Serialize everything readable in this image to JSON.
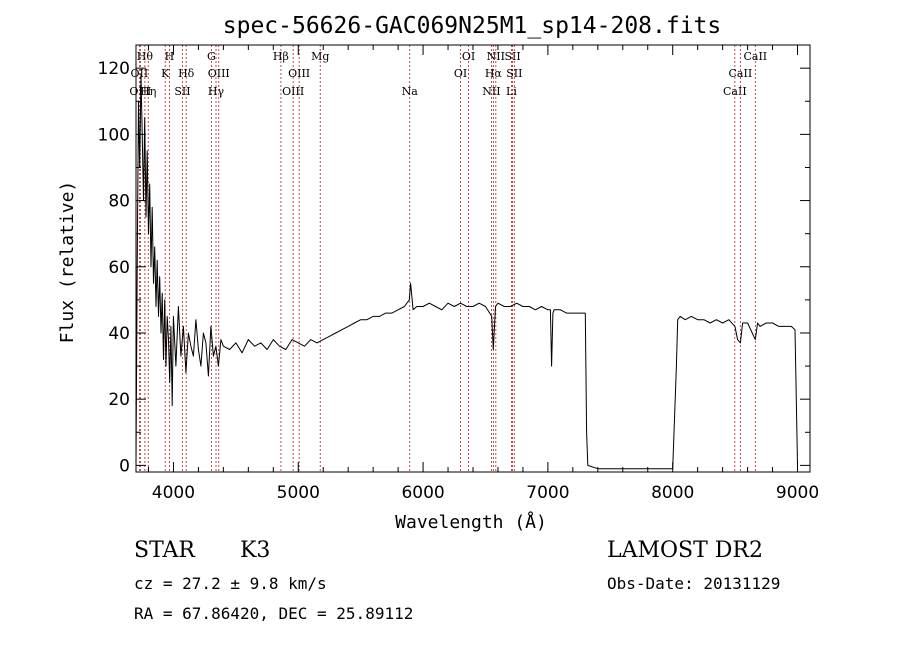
{
  "chart_data": {
    "type": "line",
    "title": "spec-56626-GAC069N25M1_sp14-208.fits",
    "xlabel": "Wavelength (Å)",
    "ylabel": "Flux (relative)",
    "xlim": [
      3700,
      9100
    ],
    "ylim": [
      -2,
      127
    ],
    "xticks": [
      4000,
      5000,
      6000,
      7000,
      8000,
      9000
    ],
    "yticks": [
      0,
      20,
      40,
      60,
      80,
      100,
      120
    ],
    "grid": false,
    "series": [
      {
        "x": [
          3700,
          3710,
          3720,
          3730,
          3740,
          3750,
          3760,
          3770,
          3780,
          3790,
          3800,
          3810,
          3820,
          3830,
          3840,
          3850,
          3860,
          3870,
          3880,
          3890,
          3900,
          3910,
          3920,
          3930,
          3940,
          3950,
          3960,
          3970,
          3980,
          3990,
          4000,
          4020,
          4040,
          4060,
          4080,
          4100,
          4120,
          4140,
          4160,
          4180,
          4200,
          4220,
          4240,
          4260,
          4280,
          4300,
          4320,
          4340,
          4360,
          4380,
          4400,
          4450,
          4500,
          4550,
          4600,
          4650,
          4700,
          4750,
          4800,
          4850,
          4900,
          4950,
          5000,
          5050,
          5100,
          5150,
          5200,
          5250,
          5300,
          5350,
          5400,
          5450,
          5500,
          5550,
          5600,
          5650,
          5700,
          5750,
          5800,
          5850,
          5890,
          5900,
          5920,
          5950,
          6000,
          6050,
          6100,
          6150,
          6200,
          6250,
          6300,
          6350,
          6400,
          6450,
          6500,
          6550,
          6563,
          6580,
          6600,
          6650,
          6700,
          6750,
          6800,
          6850,
          6900,
          6950,
          7000,
          7020,
          7030,
          7040,
          7050,
          7100,
          7150,
          7200,
          7250,
          7300,
          7310,
          7320,
          7400,
          7500,
          7600,
          7700,
          7800,
          7900,
          8000,
          8030,
          8040,
          8060,
          8100,
          8150,
          8200,
          8250,
          8300,
          8350,
          8400,
          8450,
          8498,
          8520,
          8542,
          8560,
          8600,
          8662,
          8680,
          8700,
          8750,
          8800,
          8850,
          8900,
          8950,
          8980,
          8990,
          9000
        ],
        "y": [
          0,
          60,
          110,
          90,
          118,
          100,
          80,
          105,
          75,
          95,
          70,
          85,
          60,
          78,
          55,
          66,
          48,
          62,
          45,
          57,
          40,
          52,
          32,
          50,
          30,
          45,
          38,
          25,
          42,
          18,
          45,
          30,
          48,
          33,
          42,
          28,
          40,
          36,
          33,
          44,
          35,
          30,
          40,
          37,
          27,
          42,
          33,
          36,
          30,
          38,
          36,
          35,
          37,
          34,
          38,
          36,
          37,
          35,
          38,
          36,
          35,
          38,
          37,
          36,
          38,
          37,
          38,
          39,
          40,
          41,
          42,
          43,
          44,
          44,
          45,
          45,
          46,
          46,
          47,
          48,
          50,
          55,
          47,
          48,
          48,
          49,
          48,
          47,
          49,
          48,
          49,
          48,
          48,
          49,
          48,
          45,
          35,
          48,
          49,
          48,
          48,
          49,
          48,
          48,
          47,
          48,
          47,
          47,
          30,
          46,
          47,
          47,
          46,
          46,
          46,
          46,
          10,
          0,
          -1,
          -1,
          -1,
          -1,
          -1,
          -1,
          -1,
          30,
          44,
          45,
          44,
          45,
          44,
          44,
          43,
          44,
          43,
          44,
          42,
          38,
          37,
          43,
          43,
          38,
          43,
          42,
          43,
          43,
          42,
          42,
          42,
          41,
          20,
          0
        ]
      }
    ],
    "lines": [
      {
        "wave": 3727,
        "label": "OII",
        "row": 2
      },
      {
        "wave": 3735,
        "label": "OIII",
        "row": 3
      },
      {
        "wave": 3771,
        "label": "Hθ",
        "row": 1
      },
      {
        "wave": 3798,
        "label": "Hη",
        "row": 3
      },
      {
        "wave": 3934,
        "label": "K",
        "row": 2
      },
      {
        "wave": 3968,
        "label": "H",
        "row": 1
      },
      {
        "wave": 4072,
        "label": "SII",
        "row": 3
      },
      {
        "wave": 4102,
        "label": "Hδ",
        "row": 2
      },
      {
        "wave": 4304,
        "label": "G",
        "row": 1
      },
      {
        "wave": 4341,
        "label": "Hγ",
        "row": 3
      },
      {
        "wave": 4363,
        "label": "OIII",
        "row": 2
      },
      {
        "wave": 4861,
        "label": "Hβ",
        "row": 1
      },
      {
        "wave": 4959,
        "label": "OIII",
        "row": 3
      },
      {
        "wave": 5007,
        "label": "OIII",
        "row": 2
      },
      {
        "wave": 5176,
        "label": "Mg",
        "row": 1
      },
      {
        "wave": 5893,
        "label": "Na",
        "row": 3
      },
      {
        "wave": 6300,
        "label": "OI",
        "row": 2
      },
      {
        "wave": 6364,
        "label": "OI",
        "row": 1
      },
      {
        "wave": 6548,
        "label": "NII",
        "row": 3
      },
      {
        "wave": 6563,
        "label": "Hα",
        "row": 2
      },
      {
        "wave": 6583,
        "label": "NII",
        "row": 1
      },
      {
        "wave": 6708,
        "label": "Li",
        "row": 3
      },
      {
        "wave": 6717,
        "label": "SII",
        "row": 1
      },
      {
        "wave": 6731,
        "label": "SII",
        "row": 2
      },
      {
        "wave": 8498,
        "label": "CaII",
        "row": 3
      },
      {
        "wave": 8542,
        "label": "CaII",
        "row": 2
      },
      {
        "wave": 8662,
        "label": "CaII",
        "row": 1
      }
    ]
  },
  "info": {
    "class_label": "STAR",
    "subclass": "K3",
    "survey": "LAMOST DR2",
    "redshift": "cz = 27.2 ± 9.8 km/s",
    "obs_date": "Obs-Date: 20131129",
    "coords": "RA =  67.86420, DEC =  25.89112"
  },
  "colors": {
    "trace": "#000000",
    "line_marker": "#b22222",
    "text": "#000000"
  }
}
